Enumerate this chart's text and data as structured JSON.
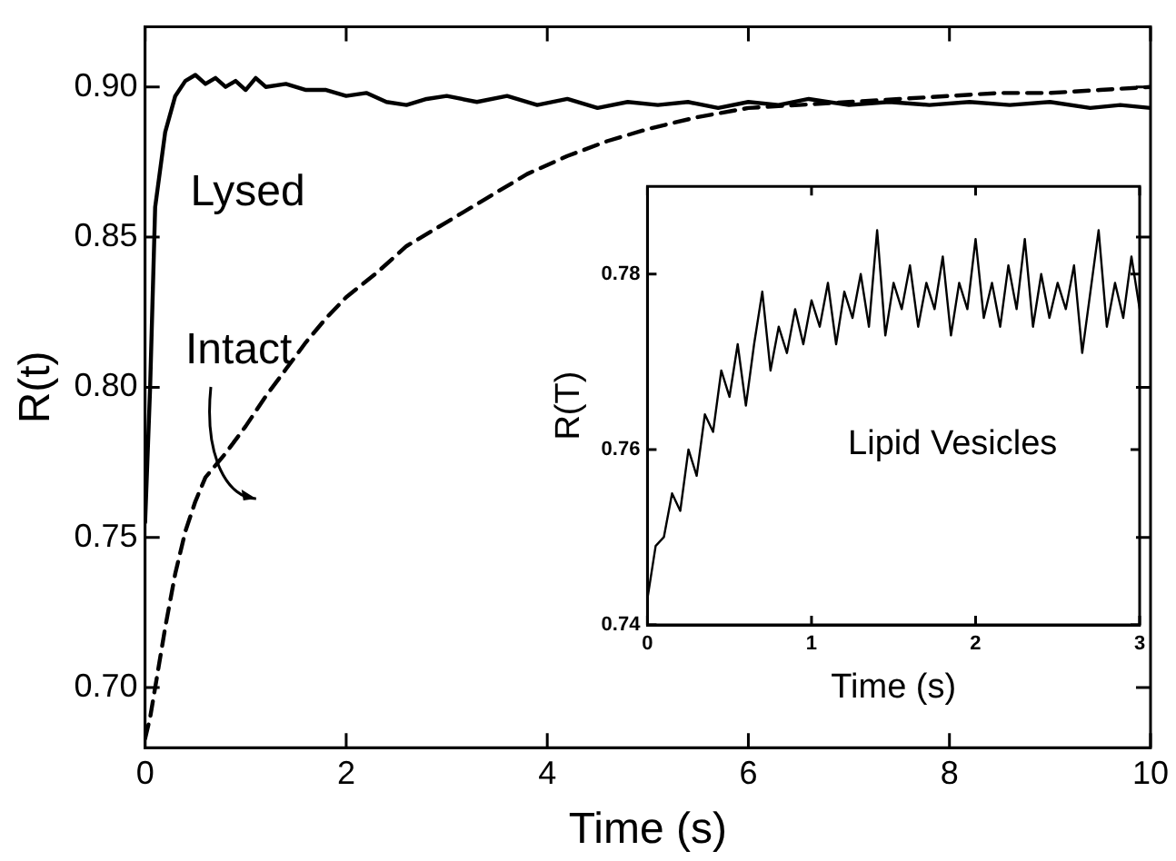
{
  "chart_data": [
    {
      "type": "line",
      "xlabel": "Time (s)",
      "ylabel": "R(t)",
      "xlim": [
        0,
        10
      ],
      "xticks": [
        0,
        2,
        4,
        6,
        8,
        10
      ],
      "ylim": [
        0.68,
        0.92
      ],
      "yticks": [
        {
          "value": 0.7,
          "label": "0.70"
        },
        {
          "value": 0.75,
          "label": "0.75"
        },
        {
          "value": 0.8,
          "label": "0.80"
        },
        {
          "value": 0.85,
          "label": "0.85"
        },
        {
          "value": 0.9,
          "label": "0.90"
        }
      ],
      "legend": false,
      "marker": "none",
      "series": [
        {
          "name": "Lysed",
          "color": "#000000",
          "line_style": "solid",
          "x": [
            0,
            0.05,
            0.1,
            0.2,
            0.3,
            0.4,
            0.5,
            0.6,
            0.7,
            0.8,
            0.9,
            1.0,
            1.1,
            1.2,
            1.4,
            1.6,
            1.8,
            2.0,
            2.2,
            2.4,
            2.6,
            2.8,
            3.0,
            3.3,
            3.6,
            3.9,
            4.2,
            4.5,
            4.8,
            5.1,
            5.4,
            5.7,
            6.0,
            6.3,
            6.6,
            7.0,
            7.4,
            7.8,
            8.2,
            8.6,
            9.0,
            9.4,
            9.7,
            10
          ],
          "values": [
            0.755,
            0.8,
            0.86,
            0.885,
            0.897,
            0.902,
            0.904,
            0.901,
            0.903,
            0.9,
            0.902,
            0.899,
            0.903,
            0.9,
            0.901,
            0.899,
            0.899,
            0.897,
            0.898,
            0.895,
            0.894,
            0.896,
            0.897,
            0.895,
            0.897,
            0.894,
            0.896,
            0.893,
            0.895,
            0.894,
            0.895,
            0.893,
            0.895,
            0.894,
            0.896,
            0.894,
            0.895,
            0.894,
            0.895,
            0.894,
            0.895,
            0.893,
            0.894,
            0.893
          ]
        },
        {
          "name": "Intact",
          "color": "#000000",
          "line_style": "dashed",
          "x": [
            0,
            0.05,
            0.1,
            0.2,
            0.3,
            0.4,
            0.5,
            0.6,
            0.8,
            1.0,
            1.2,
            1.4,
            1.6,
            1.8,
            2.0,
            2.3,
            2.6,
            3.0,
            3.4,
            3.8,
            4.2,
            4.6,
            5.0,
            5.5,
            6.0,
            6.5,
            7.0,
            7.5,
            8.0,
            8.5,
            9.0,
            9.5,
            10
          ],
          "values": [
            0.683,
            0.69,
            0.7,
            0.72,
            0.738,
            0.752,
            0.762,
            0.77,
            0.778,
            0.787,
            0.797,
            0.806,
            0.815,
            0.823,
            0.83,
            0.838,
            0.847,
            0.855,
            0.863,
            0.871,
            0.877,
            0.882,
            0.886,
            0.89,
            0.893,
            0.894,
            0.895,
            0.896,
            0.897,
            0.898,
            0.898,
            0.899,
            0.9
          ]
        }
      ]
    },
    {
      "type": "line",
      "xlabel": "Time (s)",
      "ylabel": "R(T)",
      "xlim": [
        0,
        3
      ],
      "xticks": [
        0,
        1,
        2,
        3
      ],
      "ylim": [
        0.74,
        0.79
      ],
      "yticks": [
        0.74,
        0.76,
        0.78
      ],
      "legend": false,
      "marker": "none",
      "annotations": [
        "Lipid Vesicles"
      ],
      "series": [
        {
          "color": "#000000",
          "line_style": "solid",
          "x": [
            0,
            0.05,
            0.1,
            0.15,
            0.2,
            0.25,
            0.3,
            0.35,
            0.4,
            0.45,
            0.5,
            0.55,
            0.6,
            0.65,
            0.7,
            0.75,
            0.8,
            0.85,
            0.9,
            0.95,
            1.0,
            1.05,
            1.1,
            1.15,
            1.2,
            1.25,
            1.3,
            1.35,
            1.4,
            1.45,
            1.5,
            1.55,
            1.6,
            1.65,
            1.7,
            1.75,
            1.8,
            1.85,
            1.9,
            1.95,
            2.0,
            2.05,
            2.1,
            2.15,
            2.2,
            2.25,
            2.3,
            2.35,
            2.4,
            2.45,
            2.5,
            2.55,
            2.6,
            2.65,
            2.7,
            2.75,
            2.8,
            2.85,
            2.9,
            2.95,
            3.0
          ],
          "values": [
            0.743,
            0.749,
            0.75,
            0.755,
            0.753,
            0.76,
            0.757,
            0.764,
            0.762,
            0.769,
            0.766,
            0.772,
            0.765,
            0.772,
            0.778,
            0.769,
            0.774,
            0.771,
            0.776,
            0.772,
            0.777,
            0.774,
            0.779,
            0.772,
            0.778,
            0.775,
            0.78,
            0.774,
            0.785,
            0.773,
            0.779,
            0.776,
            0.781,
            0.774,
            0.779,
            0.776,
            0.782,
            0.773,
            0.779,
            0.776,
            0.784,
            0.775,
            0.779,
            0.774,
            0.781,
            0.776,
            0.784,
            0.774,
            0.78,
            0.775,
            0.779,
            0.776,
            0.781,
            0.771,
            0.778,
            0.785,
            0.774,
            0.779,
            0.775,
            0.782,
            0.776
          ]
        }
      ]
    }
  ]
}
